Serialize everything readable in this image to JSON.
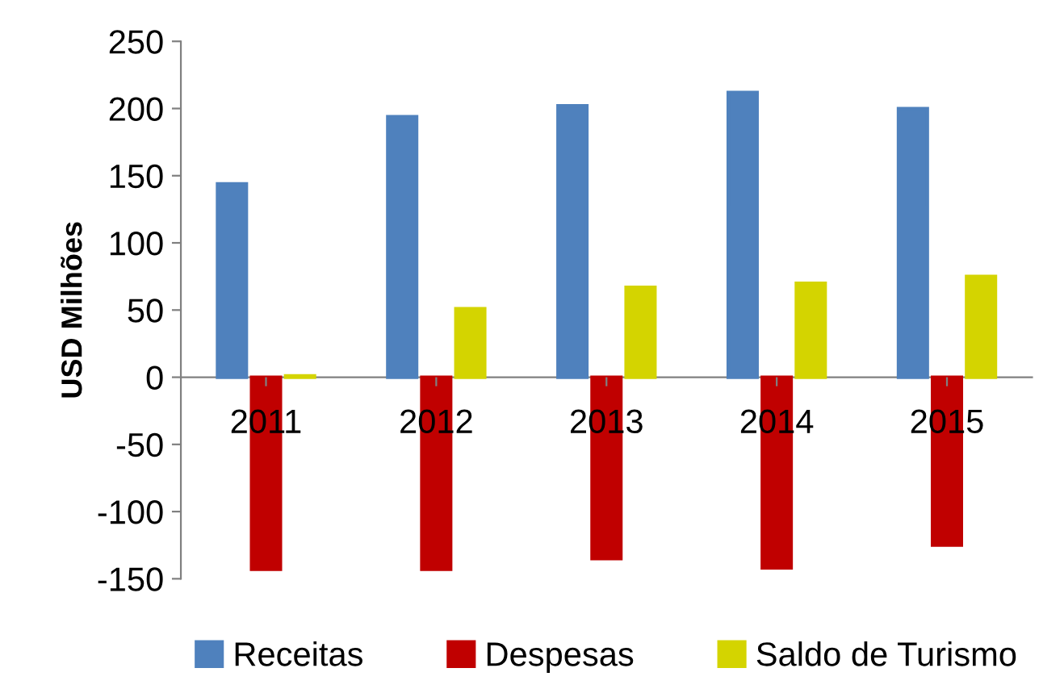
{
  "chart_data": {
    "type": "bar",
    "ylabel": "USD Milhões",
    "categories": [
      "2011",
      "2012",
      "2013",
      "2014",
      "2015"
    ],
    "series": [
      {
        "name": "Receitas",
        "color": "#4f81bd",
        "values": [
          144,
          194,
          202,
          212,
          200
        ]
      },
      {
        "name": "Despesas",
        "color": "#c00000",
        "values": [
          -143,
          -143,
          -135,
          -142,
          -125
        ]
      },
      {
        "name": "Saldo de Turismo",
        "color": "#d4d400",
        "values": [
          1,
          51,
          67,
          70,
          75
        ]
      }
    ],
    "ylim": [
      -150,
      250
    ],
    "yticks": [
      -150,
      -100,
      -50,
      0,
      50,
      100,
      150,
      200,
      250
    ],
    "grid": false,
    "legend": "bottom"
  }
}
